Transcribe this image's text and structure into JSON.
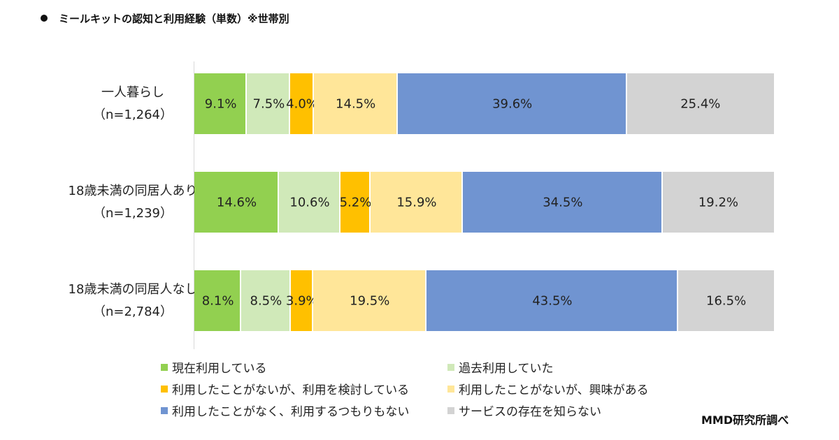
{
  "title": "ミールキットの認知と利用経験（単数）※世帯別",
  "source": "MMD研究所調べ",
  "chart_data": {
    "type": "bar",
    "orientation": "horizontal-stacked-100",
    "title": "ミールキットの認知と利用経験（単数）※世帯別",
    "categories": [
      {
        "name": "一人暮らし",
        "n": "（n=1,264）"
      },
      {
        "name": "18歳未満の同居人あり",
        "n": "（n=1,239）"
      },
      {
        "name": "18歳未満の同居人なし",
        "n": "（n=2,784）"
      }
    ],
    "series": [
      {
        "name": "現在利用している",
        "color": "#92d050",
        "values": [
          9.1,
          14.6,
          8.1
        ]
      },
      {
        "name": "過去利用していた",
        "color": "#d0e9b9",
        "values": [
          7.5,
          10.6,
          8.5
        ]
      },
      {
        "name": "利用したことがないが、利用を検討している",
        "color": "#ffc000",
        "values": [
          4.0,
          5.2,
          3.9
        ]
      },
      {
        "name": "利用したことがないが、興味がある",
        "color": "#ffe699",
        "values": [
          14.5,
          15.9,
          19.5
        ]
      },
      {
        "name": "利用したことがなく、利用するつもりもない",
        "color": "#7094d1",
        "values": [
          39.6,
          34.5,
          43.5
        ]
      },
      {
        "name": "サービスの存在を知らない",
        "color": "#d3d3d3",
        "values": [
          25.4,
          19.2,
          16.5
        ]
      }
    ],
    "value_format": "{v}%",
    "xlim": [
      0,
      100
    ],
    "legend": "bottom"
  }
}
